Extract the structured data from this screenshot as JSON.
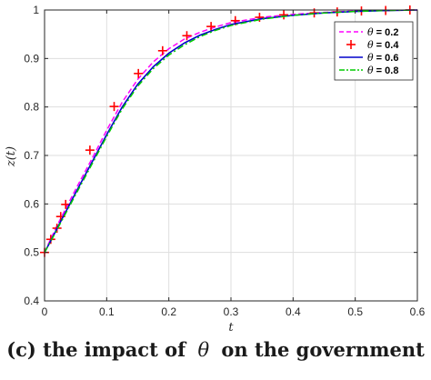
{
  "chart_data": {
    "type": "line",
    "xlabel": "t",
    "ylabel": "z(t)",
    "xlim": [
      0,
      0.6
    ],
    "ylim": [
      0.4,
      1.0
    ],
    "xticks": [
      "0",
      "0.1",
      "0.2",
      "0.3",
      "0.4",
      "0.5",
      "0.6"
    ],
    "yticks": [
      "0.4",
      "0.5",
      "0.6",
      "0.7",
      "0.8",
      "0.9",
      "1"
    ],
    "grid": true,
    "legend_position": "top-right",
    "series": [
      {
        "name": "θ = 0.2",
        "color": "#ff00ff",
        "style": "dashed",
        "x": [
          0,
          0.01,
          0.02,
          0.03,
          0.04,
          0.05,
          0.075,
          0.1,
          0.125,
          0.15,
          0.175,
          0.2,
          0.225,
          0.25,
          0.275,
          0.3,
          0.35,
          0.4,
          0.45,
          0.5,
          0.55,
          0.6
        ],
        "y": [
          0.5,
          0.528,
          0.555,
          0.58,
          0.605,
          0.63,
          0.69,
          0.752,
          0.81,
          0.857,
          0.893,
          0.92,
          0.94,
          0.954,
          0.965,
          0.974,
          0.985,
          0.991,
          0.995,
          0.998,
          0.999,
          1.0
        ]
      },
      {
        "name": "θ = 0.4",
        "color": "#ff0000",
        "style": "plus",
        "x": [
          0,
          0.01,
          0.02,
          0.026,
          0.034,
          0.073,
          0.112,
          0.151,
          0.19,
          0.229,
          0.268,
          0.307,
          0.346,
          0.385,
          0.434,
          0.471,
          0.51,
          0.549,
          0.588
        ],
        "y": [
          0.5,
          0.527,
          0.55,
          0.574,
          0.599,
          0.711,
          0.801,
          0.869,
          0.916,
          0.947,
          0.966,
          0.978,
          0.985,
          0.99,
          0.994,
          0.996,
          0.998,
          0.999,
          1.0
        ]
      },
      {
        "name": "θ = 0.6",
        "color": "#0000cc",
        "style": "solid",
        "x": [
          0,
          0.01,
          0.02,
          0.03,
          0.04,
          0.05,
          0.075,
          0.1,
          0.125,
          0.15,
          0.175,
          0.2,
          0.225,
          0.25,
          0.275,
          0.3,
          0.35,
          0.4,
          0.45,
          0.5,
          0.55,
          0.6
        ],
        "y": [
          0.5,
          0.524,
          0.549,
          0.574,
          0.598,
          0.623,
          0.683,
          0.743,
          0.8,
          0.847,
          0.883,
          0.911,
          0.932,
          0.948,
          0.96,
          0.97,
          0.982,
          0.989,
          0.994,
          0.997,
          0.999,
          1.0
        ]
      },
      {
        "name": "θ = 0.8",
        "color": "#00cc00",
        "style": "dashdot",
        "x": [
          0,
          0.01,
          0.02,
          0.03,
          0.04,
          0.05,
          0.075,
          0.1,
          0.125,
          0.15,
          0.175,
          0.2,
          0.225,
          0.25,
          0.275,
          0.3,
          0.35,
          0.4,
          0.45,
          0.5,
          0.55,
          0.6
        ],
        "y": [
          0.5,
          0.523,
          0.547,
          0.571,
          0.595,
          0.619,
          0.679,
          0.739,
          0.796,
          0.843,
          0.879,
          0.907,
          0.928,
          0.945,
          0.958,
          0.968,
          0.981,
          0.989,
          0.994,
          0.997,
          0.999,
          1.0
        ]
      }
    ]
  },
  "legend": {
    "labels": [
      "0.2",
      "0.4",
      "0.6",
      "0.8"
    ]
  },
  "caption": {
    "label": "(c)",
    "prefix": "the impact of",
    "symbol": "θ",
    "suffix": "on the government"
  }
}
